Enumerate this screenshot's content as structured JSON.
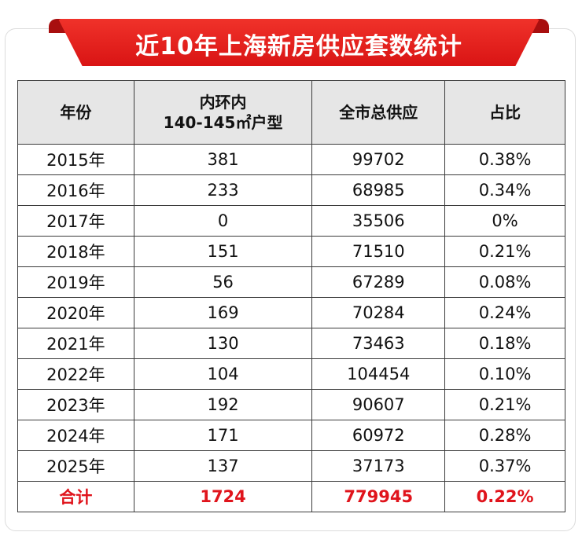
{
  "title": "近10年上海新房供应套数统计",
  "table": {
    "headers": [
      "年份",
      "内环内",
      "140-145㎡户型",
      "全市总供应",
      "占比"
    ],
    "rows": [
      [
        "2015年",
        "381",
        "99702",
        "0.38%"
      ],
      [
        "2016年",
        "233",
        "68985",
        "0.34%"
      ],
      [
        "2017年",
        "0",
        "35506",
        "0%"
      ],
      [
        "2018年",
        "151",
        "71510",
        "0.21%"
      ],
      [
        "2019年",
        "56",
        "67289",
        "0.08%"
      ],
      [
        "2020年",
        "169",
        "70284",
        "0.24%"
      ],
      [
        "2021年",
        "130",
        "73463",
        "0.18%"
      ],
      [
        "2022年",
        "104",
        "104454",
        "0.10%"
      ],
      [
        "2023年",
        "192",
        "90607",
        "0.21%"
      ],
      [
        "2024年",
        "171",
        "60972",
        "0.28%"
      ],
      [
        "2025年",
        "137",
        "37173",
        "0.37%"
      ]
    ],
    "total": [
      "合计",
      "1724",
      "779945",
      "0.22%"
    ]
  },
  "colors": {
    "banner": "#e0201a",
    "total_text": "#e0141c",
    "header_bg": "#e6e6e6"
  }
}
